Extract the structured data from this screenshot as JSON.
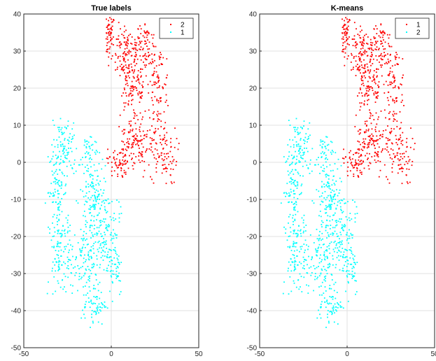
{
  "chart_data": [
    {
      "type": "scatter",
      "title": "True labels",
      "xlabel": "",
      "ylabel": "",
      "xlim": [
        -50,
        50
      ],
      "ylim": [
        -50,
        40
      ],
      "xticks": [
        -50,
        0,
        50
      ],
      "yticks": [
        40,
        30,
        20,
        10,
        0,
        -10,
        -20,
        -30,
        -40,
        -50
      ],
      "grid": true,
      "legend_position": "top-right",
      "series": [
        {
          "name": "2",
          "color": "#ff0000",
          "points": []
        },
        {
          "name": "1",
          "color": "#00ffff",
          "points": []
        }
      ]
    },
    {
      "type": "scatter",
      "title": "K-means",
      "xlabel": "",
      "ylabel": "",
      "xlim": [
        -50,
        50
      ],
      "ylim": [
        -50,
        40
      ],
      "xticks": [
        -50,
        0,
        50
      ],
      "yticks": [
        40,
        30,
        20,
        10,
        0,
        -10,
        -20,
        -30,
        -40,
        -50
      ],
      "grid": true,
      "legend_position": "top-right",
      "series": [
        {
          "name": "1",
          "color": "#ff0000",
          "points": []
        },
        {
          "name": "2",
          "color": "#00ffff",
          "points": []
        }
      ]
    }
  ]
}
